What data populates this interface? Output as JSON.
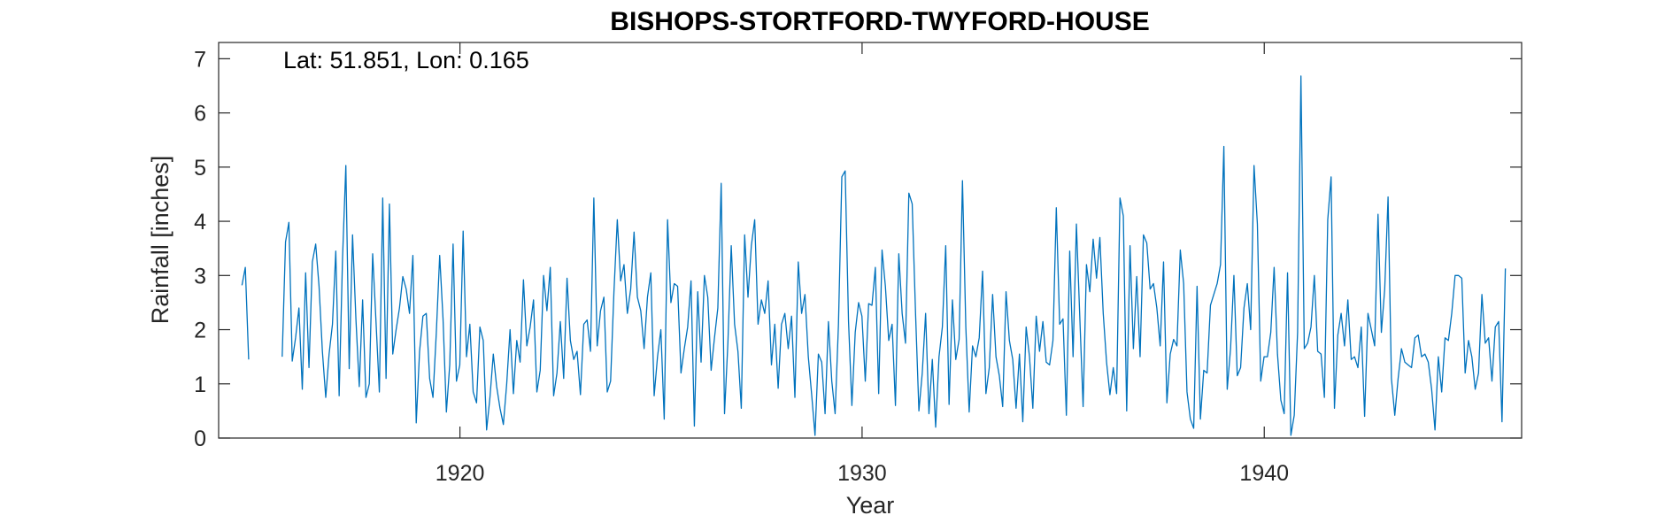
{
  "chart_data": {
    "type": "line",
    "title": "BISHOPS-STORTFORD-TWYFORD-HOUSE",
    "annotation": "Lat: 51.851, Lon: 0.165",
    "xlabel": "Year",
    "ylabel": "Rainfall [inches]",
    "xlim": [
      1914.0,
      1946.4
    ],
    "ylim": [
      0,
      7.3
    ],
    "xticks": [
      1920,
      1930,
      1940
    ],
    "xtick_labels": [
      "1920",
      "1930",
      "1940"
    ],
    "yticks": [
      0,
      1,
      2,
      3,
      4,
      5,
      6,
      7
    ],
    "ytick_labels": [
      "0",
      "1",
      "2",
      "3",
      "4",
      "5",
      "6",
      "7"
    ],
    "grid": false,
    "line_color": "#0072BD",
    "series": [
      {
        "x_start": 1914.58,
        "x_step": 0.08333,
        "values": [
          2.82,
          3.15,
          1.45,
          null,
          null,
          null,
          null,
          null,
          null,
          null,
          null,
          null,
          1.5,
          3.62,
          3.98,
          1.42,
          1.85,
          2.4,
          0.9,
          3.05,
          1.3,
          3.25,
          3.58,
          2.8,
          1.6,
          0.75,
          1.55,
          2.1,
          3.45,
          0.78,
          3.3,
          5.03,
          1.28,
          3.75,
          2.2,
          0.95,
          2.55,
          0.75,
          1.0,
          3.4,
          2.15,
          0.85,
          4.43,
          1.1,
          4.32,
          1.55,
          2.0,
          2.4,
          2.98,
          2.75,
          2.3,
          3.37,
          0.28,
          1.6,
          2.25,
          2.3,
          1.1,
          0.75,
          1.95,
          3.37,
          2.2,
          0.48,
          1.35,
          3.58,
          1.05,
          1.35,
          3.82,
          1.5,
          2.1,
          0.85,
          0.65,
          2.05,
          1.8,
          0.15,
          0.75,
          1.55,
          0.95,
          0.55,
          0.25,
          1.0,
          2.0,
          0.82,
          1.8,
          1.4,
          2.92,
          1.7,
          2.05,
          2.55,
          0.85,
          1.25,
          3.0,
          2.35,
          3.15,
          0.78,
          1.2,
          2.15,
          1.1,
          2.95,
          1.8,
          1.45,
          1.6,
          0.8,
          2.1,
          2.18,
          1.6,
          4.43,
          1.7,
          2.35,
          2.6,
          0.85,
          1.05,
          2.7,
          4.03,
          2.9,
          3.2,
          2.3,
          2.75,
          3.8,
          2.6,
          2.35,
          1.65,
          2.6,
          3.05,
          0.78,
          1.5,
          2.0,
          0.35,
          4.03,
          2.5,
          2.85,
          2.8,
          1.2,
          1.65,
          2.05,
          2.9,
          0.22,
          2.7,
          1.4,
          3.0,
          2.6,
          1.25,
          1.85,
          2.4,
          4.7,
          0.45,
          1.75,
          3.55,
          2.1,
          1.6,
          0.55,
          3.75,
          2.6,
          3.55,
          4.03,
          2.1,
          2.55,
          2.3,
          2.9,
          1.35,
          2.1,
          0.92,
          2.1,
          2.3,
          1.65,
          2.25,
          0.75,
          3.25,
          2.3,
          2.65,
          1.5,
          0.8,
          0.05,
          1.55,
          1.4,
          0.45,
          2.15,
          1.05,
          0.45,
          2.1,
          4.82,
          4.93,
          2.15,
          0.6,
          1.95,
          2.5,
          2.25,
          1.05,
          2.48,
          2.45,
          3.15,
          0.82,
          3.47,
          2.8,
          1.8,
          2.1,
          0.6,
          3.4,
          2.3,
          1.75,
          4.52,
          4.32,
          2.3,
          0.5,
          1.2,
          2.3,
          0.45,
          1.45,
          0.2,
          1.5,
          2.05,
          3.55,
          0.62,
          2.55,
          1.45,
          1.82,
          4.75,
          2.05,
          0.48,
          1.7,
          1.5,
          1.85,
          3.08,
          0.82,
          1.3,
          2.65,
          1.5,
          1.15,
          0.58,
          2.7,
          1.8,
          1.45,
          0.55,
          1.55,
          0.3,
          2.05,
          1.5,
          0.55,
          2.25,
          1.6,
          2.15,
          1.4,
          1.35,
          1.8,
          4.25,
          2.1,
          2.2,
          0.42,
          3.45,
          1.5,
          3.95,
          2.25,
          0.58,
          3.2,
          2.7,
          3.67,
          2.95,
          3.7,
          2.3,
          1.4,
          0.8,
          1.3,
          0.82,
          4.43,
          4.1,
          0.5,
          3.55,
          1.65,
          2.98,
          1.5,
          3.75,
          3.6,
          2.75,
          2.85,
          2.4,
          1.7,
          3.25,
          0.65,
          1.55,
          1.82,
          1.7,
          3.47,
          2.85,
          0.85,
          0.35,
          0.18,
          2.8,
          0.35,
          1.25,
          1.2,
          2.45,
          2.65,
          2.85,
          3.2,
          5.38,
          0.9,
          1.65,
          3.0,
          1.15,
          1.3,
          2.4,
          2.85,
          2.0,
          5.03,
          3.95,
          1.05,
          1.5,
          1.5,
          1.95,
          3.15,
          1.55,
          0.7,
          0.45,
          3.05,
          0.05,
          0.42,
          1.95,
          6.68,
          1.65,
          1.75,
          2.05,
          3.0,
          1.6,
          1.55,
          0.75,
          4.03,
          4.82,
          0.55,
          1.9,
          2.3,
          1.7,
          2.55,
          1.45,
          1.5,
          1.3,
          2.05,
          0.4,
          2.3,
          2.0,
          1.7,
          4.13,
          1.95,
          2.75,
          4.45,
          1.1,
          0.42,
          1.1,
          1.65,
          1.4,
          1.35,
          1.3,
          1.85,
          1.9,
          1.5,
          1.55,
          1.4,
          0.9,
          0.15,
          1.5,
          0.85,
          1.85,
          1.8,
          2.3,
          3.0,
          3.0,
          2.95,
          1.2,
          1.8,
          1.5,
          0.9,
          1.2,
          2.65,
          1.75,
          1.85,
          1.05,
          2.05,
          2.15,
          0.3,
          3.13
        ]
      }
    ]
  }
}
